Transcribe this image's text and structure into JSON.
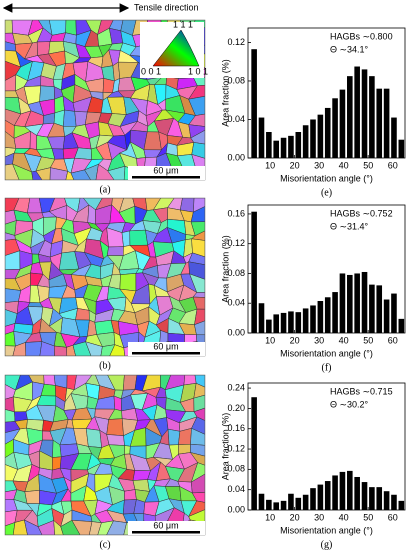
{
  "figure": {
    "direction": "Tensile direction",
    "maps": [
      {
        "label": "(a)",
        "scale": "60 μm"
      },
      {
        "label": "(b)",
        "scale": "60 μm"
      },
      {
        "label": "(c)",
        "scale": "60 μm"
      }
    ],
    "ipf": {
      "top": "1 1 1",
      "left": "0 0 1",
      "right": "1 0 1"
    }
  },
  "chart_data": [
    {
      "type": "histogram",
      "panel": "(e)",
      "ylabel": "Area fraction (%)",
      "xlabel": "Misorientation angle (°)",
      "annotations": [
        "HAGBs ∼0.800",
        "Θ ∼34.1°"
      ],
      "color": "#000000",
      "bins": [
        2,
        5,
        8,
        11,
        14,
        17,
        20,
        23,
        26,
        29,
        32,
        35,
        38,
        41,
        44,
        47,
        50,
        53,
        56,
        59,
        62,
        65
      ],
      "values": [
        0.113,
        0.042,
        0.027,
        0.018,
        0.021,
        0.023,
        0.027,
        0.034,
        0.04,
        0.045,
        0.052,
        0.062,
        0.071,
        0.085,
        0.095,
        0.092,
        0.085,
        0.072,
        0.072,
        0.042,
        0.019
      ],
      "xlim": [
        1,
        65
      ],
      "xticks": [
        10,
        20,
        30,
        40,
        50,
        60
      ],
      "ylim": [
        0,
        0.135
      ],
      "yticks": [
        {
          "value": 0,
          "label": "0.00"
        },
        {
          "value": 0.04,
          "label": "0.04"
        },
        {
          "value": 0.08,
          "label": "0.08"
        },
        {
          "value": 0.12,
          "label": "0.12"
        }
      ]
    },
    {
      "type": "histogram",
      "panel": "(f)",
      "ylabel": "Area fraction (%)",
      "xlabel": "Misorientation angle (°)",
      "annotations": [
        "HAGBs ∼0.752",
        "Θ ∼31.4°"
      ],
      "color": "#000000",
      "bins": [
        2,
        5,
        8,
        11,
        14,
        17,
        20,
        23,
        26,
        29,
        32,
        35,
        38,
        41,
        44,
        47,
        50,
        53,
        56,
        59,
        62,
        65
      ],
      "values": [
        0.163,
        0.04,
        0.018,
        0.025,
        0.027,
        0.029,
        0.028,
        0.033,
        0.037,
        0.043,
        0.048,
        0.055,
        0.08,
        0.078,
        0.08,
        0.082,
        0.065,
        0.064,
        0.045,
        0.053,
        0.019
      ],
      "xlim": [
        1,
        65
      ],
      "xticks": [
        10,
        20,
        30,
        40,
        50,
        60
      ],
      "ylim": [
        0,
        0.172
      ],
      "yticks": [
        {
          "value": 0,
          "label": "0.00"
        },
        {
          "value": 0.04,
          "label": "0.04"
        },
        {
          "value": 0.08,
          "label": "0.08"
        },
        {
          "value": 0.12,
          "label": "0.12"
        },
        {
          "value": 0.16,
          "label": "0.16"
        }
      ]
    },
    {
      "type": "histogram",
      "panel": "(g)",
      "ylabel": "Area fraction (%)",
      "xlabel": "Misorientation angle (°)",
      "annotations": [
        "HAGBs ∼0.715",
        "Θ ∼30.2°"
      ],
      "color": "#000000",
      "bins": [
        2,
        5,
        8,
        11,
        14,
        17,
        20,
        23,
        26,
        29,
        32,
        35,
        38,
        41,
        44,
        47,
        50,
        53,
        56,
        59,
        62,
        65
      ],
      "values": [
        0.222,
        0.032,
        0.02,
        0.015,
        0.018,
        0.032,
        0.024,
        0.03,
        0.043,
        0.05,
        0.057,
        0.068,
        0.075,
        0.077,
        0.065,
        0.055,
        0.045,
        0.045,
        0.037,
        0.03,
        0.018
      ],
      "xlim": [
        1,
        65
      ],
      "xticks": [
        10,
        20,
        30,
        40,
        50,
        60
      ],
      "ylim": [
        0,
        0.25
      ],
      "yticks": [
        {
          "value": 0,
          "label": "0.00"
        },
        {
          "value": 0.04,
          "label": "0.04"
        },
        {
          "value": 0.08,
          "label": "0.08"
        },
        {
          "value": 0.12,
          "label": "0.12"
        },
        {
          "value": 0.16,
          "label": "0.16"
        },
        {
          "value": 0.2,
          "label": "0.20"
        },
        {
          "value": 0.24,
          "label": "0.24"
        }
      ]
    }
  ]
}
